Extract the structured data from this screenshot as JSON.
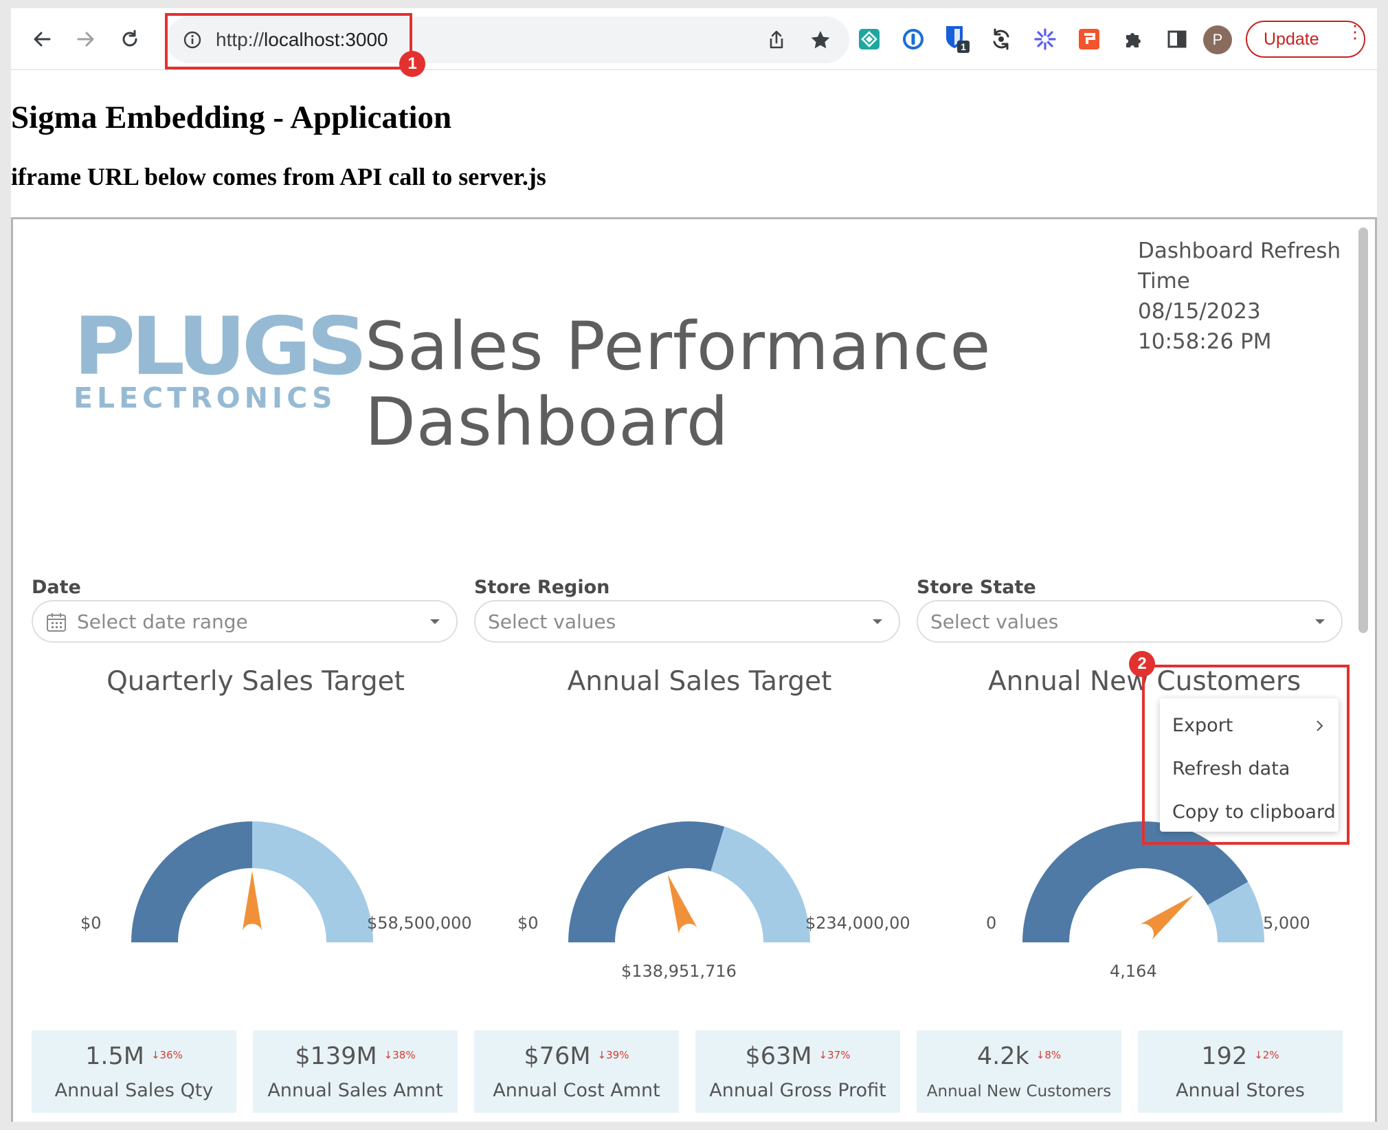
{
  "browser": {
    "url_prefix": "http://",
    "url_path": "localhost:3000",
    "update_label": "Update",
    "avatar_initial": "P",
    "ext_badge_count": "1",
    "annotation_1": "1",
    "annotation_2": "2"
  },
  "page": {
    "h1": "Sigma Embedding - Application",
    "h3": "iframe URL below comes from API call to server.js"
  },
  "dashboard": {
    "logo_top": "PLUGS",
    "logo_bottom": "ELECTRONICS",
    "title_line1": "Sales Performance",
    "title_line2": "Dashboard",
    "refresh_line1": "Dashboard Refresh",
    "refresh_line2": "Time",
    "refresh_date": "08/15/2023",
    "refresh_time": "10:58:26 PM"
  },
  "filters": [
    {
      "label": "Date",
      "placeholder": "Select date range"
    },
    {
      "label": "Store Region",
      "placeholder": "Select values"
    },
    {
      "label": "Store State",
      "placeholder": "Select values"
    }
  ],
  "gauges": [
    {
      "title": "Quarterly Sales Target",
      "min_label": "$0",
      "max_label": "$58,500,000",
      "value_label": "",
      "fraction": 0.5,
      "needle_fraction": 0.5
    },
    {
      "title": "Annual Sales Target",
      "min_label": "$0",
      "max_label": "$234,000,00",
      "value_label": "$138,951,716",
      "fraction": 0.594,
      "needle_fraction": 0.39
    },
    {
      "title": "Annual New Customers",
      "min_label": "0",
      "max_label": "5,000",
      "value_label": "4,164",
      "fraction": 0.833,
      "needle_fraction": 0.79
    }
  ],
  "kpis": [
    {
      "value": "1.5M",
      "change": "↓36%",
      "label": "Annual Sales Qty"
    },
    {
      "value": "$139M",
      "change": "↓38%",
      "label": "Annual Sales Amnt"
    },
    {
      "value": "$76M",
      "change": "↓39%",
      "label": "Annual Cost Amnt"
    },
    {
      "value": "$63M",
      "change": "↓37%",
      "label": "Annual Gross Profit"
    },
    {
      "value": "4.2k",
      "change": "↓8%",
      "label": "Annual New Customers"
    },
    {
      "value": "192",
      "change": "↓2%",
      "label": "Annual Stores"
    }
  ],
  "context_menu": {
    "items": [
      {
        "label": "Export",
        "has_submenu": true
      },
      {
        "label": "Refresh data",
        "has_submenu": false
      },
      {
        "label": "Copy to clipboard",
        "has_submenu": false
      }
    ]
  },
  "colors": {
    "gauge_dark": "#4f7aa6",
    "gauge_light": "#a3cbe6",
    "needle": "#f0913a",
    "highlight": "#e2312f",
    "logo": "#96bad4"
  }
}
